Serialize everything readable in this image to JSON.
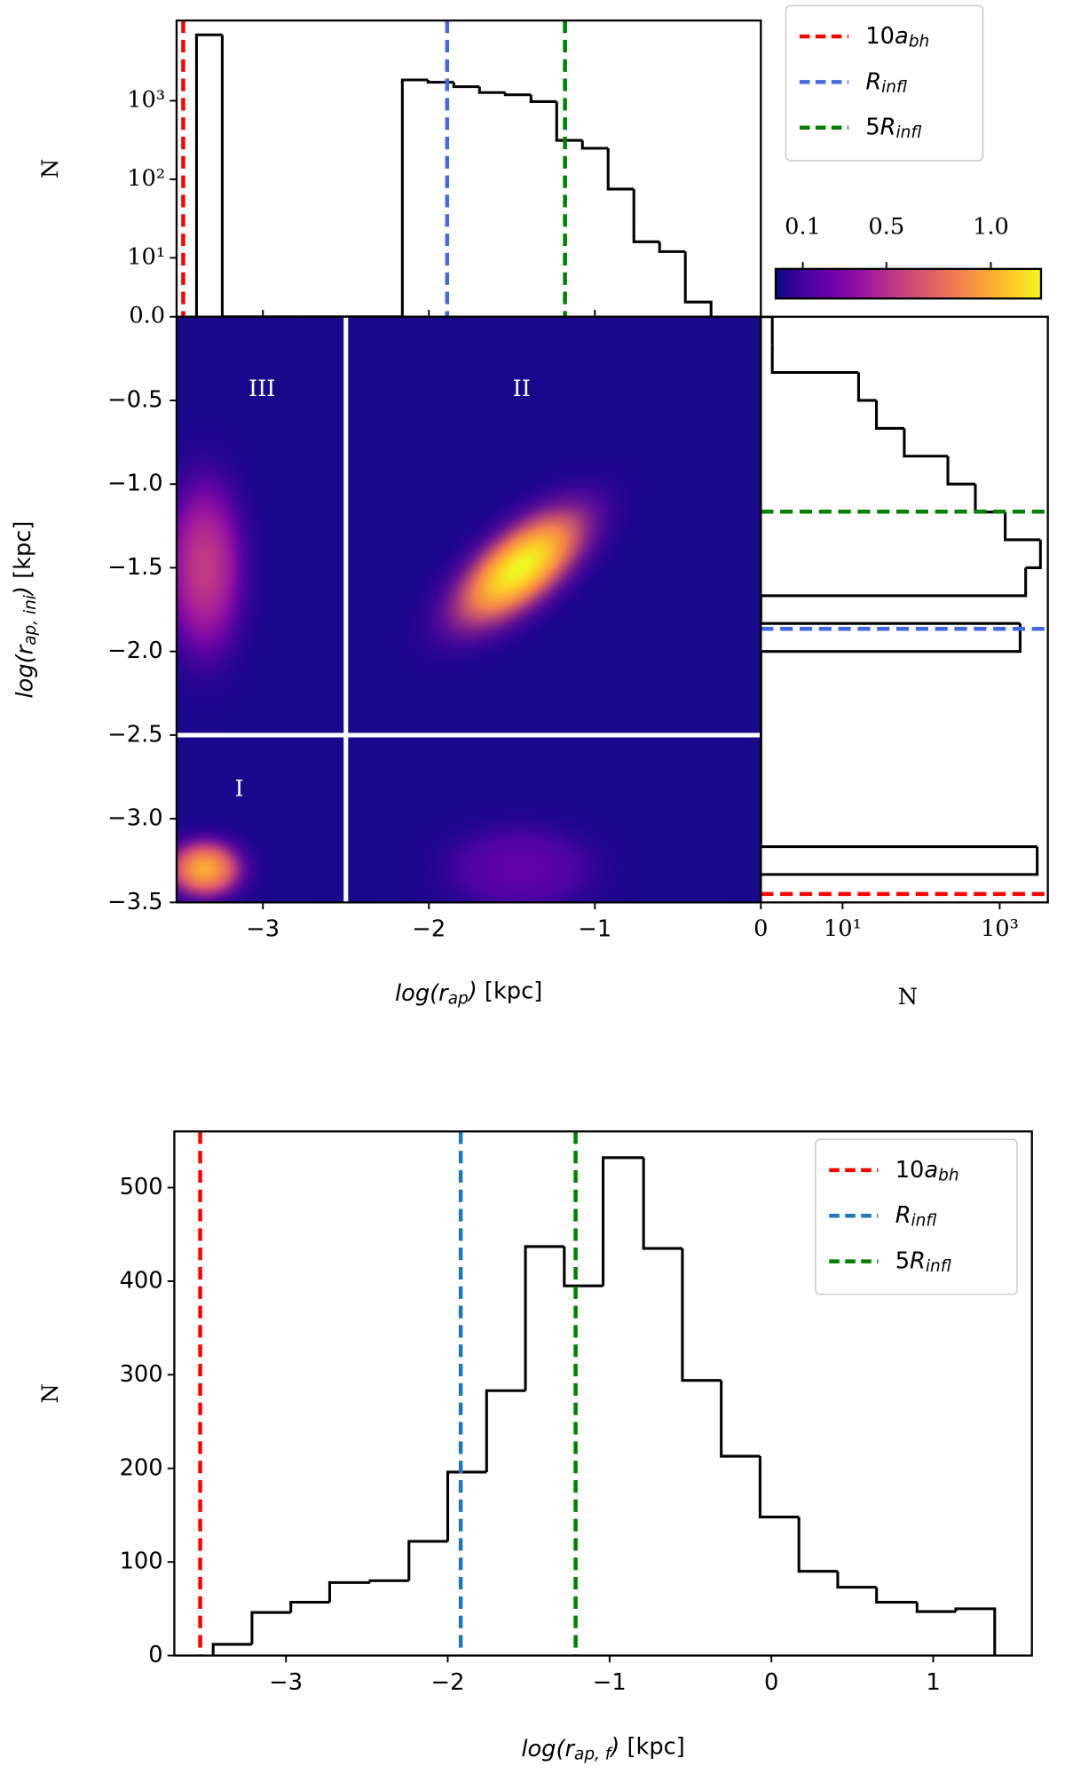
{
  "chart_data": [
    {
      "type": "histogram",
      "orientation": "vertical",
      "ylabel": "N",
      "yscale": "symlog",
      "linthresh": 10,
      "xlim": [
        -3.52,
        0
      ],
      "ylim": [
        0,
        10500
      ],
      "yticks": [
        {
          "value": 0,
          "label": "0.0"
        },
        {
          "value": 10,
          "label": "10¹"
        },
        {
          "value": 100,
          "label": "10²"
        },
        {
          "value": 1000,
          "label": "10³"
        }
      ],
      "bins": [
        -3.4,
        -3.245,
        -3.09,
        -2.935,
        -2.78,
        -2.625,
        -2.47,
        -2.315,
        -2.16,
        -2.005,
        -1.85,
        -1.695,
        -1.54,
        -1.385,
        -1.23,
        -1.075,
        -0.92,
        -0.765,
        -0.61,
        -0.455,
        -0.3
      ],
      "values": [
        6900,
        0,
        0,
        0,
        0,
        0,
        0,
        0,
        1840,
        1720,
        1510,
        1270,
        1190,
        975,
        313,
        248,
        75,
        16,
        12,
        2.5
      ],
      "color": "#000000",
      "reference_lines": [
        {
          "name": [
            {
              "text": "10"
            },
            {
              "text": "a",
              "italic": true
            },
            {
              "text": "bh",
              "sub": true,
              "italic": true
            }
          ],
          "color": "#ff0000",
          "value": -3.48
        },
        {
          "name": [
            {
              "text": "R",
              "italic": true
            },
            {
              "text": "infl",
              "sub": true,
              "italic": true
            }
          ],
          "color": "#4169e1",
          "value": -1.89
        },
        {
          "name": [
            {
              "text": "5"
            },
            {
              "text": "R",
              "italic": true
            },
            {
              "text": "infl",
              "sub": true,
              "italic": true
            }
          ],
          "color": "#008000",
          "value": -1.18
        }
      ],
      "legend": "outside upper right"
    },
    {
      "type": "density",
      "xlabel": [
        {
          "text": "log(r",
          "italic": true
        },
        {
          "text": "ap",
          "sub": true,
          "italic": true
        },
        {
          "text": ")",
          "italic": true
        },
        {
          "text": " [kpc]"
        }
      ],
      "ylabel": [
        {
          "text": "log(r",
          "italic": true
        },
        {
          "text": "ap, ini",
          "sub": true,
          "italic": true
        },
        {
          "text": ")",
          "italic": true
        },
        {
          "text": " [kpc]"
        }
      ],
      "xlim": [
        -3.52,
        0
      ],
      "ylim": [
        -3.5,
        0
      ],
      "xticks": [
        {
          "value": -3,
          "label": "−3"
        },
        {
          "value": -2,
          "label": "−2"
        },
        {
          "value": -1,
          "label": "−1"
        }
      ],
      "yticks": [
        {
          "value": -0.5,
          "label": "−0.5"
        },
        {
          "value": -1,
          "label": "−1.0"
        },
        {
          "value": -1.5,
          "label": "−1.5"
        },
        {
          "value": -2,
          "label": "−2.0"
        },
        {
          "value": -2.5,
          "label": "−2.5"
        },
        {
          "value": -3,
          "label": "−3.0"
        },
        {
          "value": -3.5,
          "label": "−3.5"
        }
      ],
      "colormap": "plasma",
      "clim": [
        -0.03,
        1.24
      ],
      "colorbar_ticks": [
        0.1,
        0.5,
        {
          "value": 1,
          "label": "1.0"
        }
      ],
      "peaks": [
        {
          "x": -1.45,
          "y": -1.5,
          "value": 1.24,
          "spread_x": 0.38,
          "spread_y": 0.17,
          "angle": 40
        },
        {
          "x": -3.35,
          "y": -3.3,
          "value": 1.0,
          "spread_x": 0.17,
          "spread_y": 0.13,
          "angle": 0
        },
        {
          "x": -3.35,
          "y": -1.5,
          "value": 0.55,
          "spread_x": 0.18,
          "spread_y": 0.4,
          "angle": 0
        },
        {
          "x": -1.45,
          "y": -3.3,
          "value": 0.2,
          "spread_x": 0.35,
          "spread_y": 0.2,
          "angle": 0
        }
      ],
      "dividers": [
        {
          "axis": "x",
          "value": -2.5
        },
        {
          "axis": "y",
          "value": -2.5
        }
      ],
      "regions": [
        "III",
        "II",
        "I"
      ]
    },
    {
      "type": "histogram",
      "orientation": "horizontal",
      "xlabel": "N",
      "xscale": "symlog",
      "linthresh": 10,
      "xlim": [
        0,
        4100
      ],
      "ylim": [
        -3.5,
        0
      ],
      "xticks": [
        0,
        {
          "value": 10,
          "label": "10¹"
        },
        {
          "value": 1000,
          "label": "10³"
        }
      ],
      "bins": [
        -3.333,
        -3.167,
        -3.0,
        -2.833,
        -2.667,
        -2.5,
        -2.333,
        -2.167,
        -2.0,
        -1.833,
        -1.667,
        -1.5,
        -1.333,
        -1.167,
        -1.0,
        -0.833,
        -0.667,
        -0.5,
        -0.333,
        -0.167,
        0
      ],
      "values": [
        3000,
        0,
        0,
        0,
        0,
        0,
        0,
        0,
        1820,
        0,
        2140,
        3300,
        1175,
        490,
        219,
        61,
        27,
        16,
        1.4,
        1.4
      ],
      "color": "#000000",
      "reference_lines": [
        {
          "color": "#008000",
          "value": -1.165
        },
        {
          "color": "#4169e1",
          "value": -1.865
        },
        {
          "color": "#ff0000",
          "value": -3.45
        }
      ]
    },
    {
      "type": "histogram",
      "orientation": "vertical",
      "ylabel": "N",
      "xlabel": [
        {
          "text": "log(r",
          "italic": true
        },
        {
          "text": "ap, f",
          "sub": true,
          "italic": true
        },
        {
          "text": ")",
          "italic": true
        },
        {
          "text": " [kpc]"
        }
      ],
      "xlim": [
        -3.69,
        1.61
      ],
      "ylim": [
        0,
        560
      ],
      "xticks": [
        {
          "value": -3,
          "label": "−3"
        },
        {
          "value": -2,
          "label": "−2"
        },
        {
          "value": -1,
          "label": "−1"
        },
        0,
        1
      ],
      "yticks": [
        0,
        100,
        200,
        300,
        400,
        500
      ],
      "bins": [
        -3.45,
        -3.21,
        -2.97,
        -2.73,
        -2.48,
        -2.24,
        -2.0,
        -1.76,
        -1.52,
        -1.28,
        -1.04,
        -0.79,
        -0.55,
        -0.31,
        -0.07,
        0.17,
        0.41,
        0.65,
        0.9,
        1.14,
        1.38
      ],
      "values": [
        12,
        46,
        57,
        78,
        80,
        122,
        196,
        283,
        437,
        395,
        532,
        435,
        294,
        213,
        148,
        90,
        73,
        57,
        47,
        50
      ],
      "color": "#000000",
      "reference_lines": [
        {
          "name": [
            {
              "text": "10"
            },
            {
              "text": "a",
              "italic": true
            },
            {
              "text": "bh",
              "sub": true,
              "italic": true
            }
          ],
          "color": "#ff0000",
          "value": -3.53
        },
        {
          "name": [
            {
              "text": "R",
              "italic": true
            },
            {
              "text": "infl",
              "sub": true,
              "italic": true
            }
          ],
          "color": "#1f77b4",
          "value": -1.92
        },
        {
          "name": [
            {
              "text": "5"
            },
            {
              "text": "R",
              "italic": true
            },
            {
              "text": "infl",
              "sub": true,
              "italic": true
            }
          ],
          "color": "#008000",
          "value": -1.21
        }
      ],
      "legend": "upper right"
    }
  ]
}
